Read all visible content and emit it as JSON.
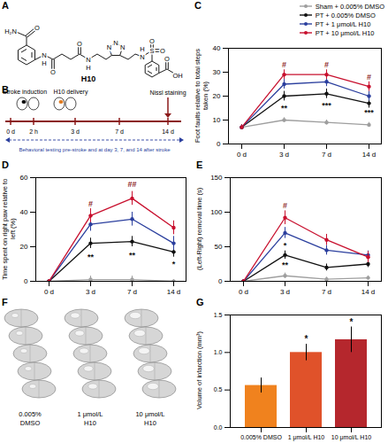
{
  "chart_data": [
    {
      "panel": "C",
      "type": "line",
      "y_label": "Foot faults relative to total steps taken (%)",
      "categories": [
        "0 d",
        "3 d",
        "7 d",
        "14 d"
      ],
      "ylim": [
        0,
        40
      ],
      "yticks": [
        0,
        10,
        20,
        30,
        40
      ],
      "legend": "top-right",
      "marker": "circle",
      "series": [
        {
          "name": "Sham + 0.005% DMSO",
          "color": "#9e9e9e",
          "values": [
            7,
            10,
            9,
            8
          ],
          "errors": [
            1,
            1,
            1,
            1
          ]
        },
        {
          "name": "PT + 0.005% DMSO",
          "color": "#111111",
          "values": [
            7,
            20,
            21,
            17
          ],
          "errors": [
            1,
            2,
            2,
            2
          ]
        },
        {
          "name": "PT + 1 μmol/L H10",
          "color": "#2b3f9e",
          "values": [
            7,
            25,
            26,
            20
          ],
          "errors": [
            1,
            2,
            2,
            2
          ]
        },
        {
          "name": "PT + 10 μmol/L H10",
          "color": "#c8102e",
          "values": [
            7,
            29,
            29,
            24
          ],
          "errors": [
            1,
            2,
            2,
            2
          ]
        }
      ],
      "annotations": [
        {
          "x": "3 d",
          "y": 33,
          "text": "#",
          "color": "#8b1a1a"
        },
        {
          "x": "7 d",
          "y": 33,
          "text": "#",
          "color": "#8b1a1a"
        },
        {
          "x": "14 d",
          "y": 28,
          "text": "#",
          "color": "#8b1a1a"
        },
        {
          "x": "3 d",
          "y": 15,
          "text": "**",
          "color": "#111111"
        },
        {
          "x": "7 d",
          "y": 16,
          "text": "***",
          "color": "#111111"
        },
        {
          "x": "14 d",
          "y": 13,
          "text": "***",
          "color": "#111111"
        }
      ]
    },
    {
      "panel": "D",
      "type": "line",
      "y_label": "Time spent on right paw relative to left (%)",
      "categories": [
        "0 d",
        "3 d",
        "7 d",
        "14 d"
      ],
      "ylim": [
        0,
        60
      ],
      "yticks": [
        0,
        20,
        40,
        60
      ],
      "marker": "circle",
      "series": [
        {
          "color": "#9e9e9e",
          "values": [
            0,
            1,
            1,
            0
          ],
          "errors": [
            1,
            2,
            2,
            1
          ]
        },
        {
          "color": "#111111",
          "values": [
            0,
            22,
            23,
            17
          ],
          "errors": [
            1,
            3,
            3,
            3
          ]
        },
        {
          "color": "#2b3f9e",
          "values": [
            0,
            33,
            36,
            22
          ],
          "errors": [
            1,
            4,
            4,
            4
          ]
        },
        {
          "color": "#c8102e",
          "values": [
            0,
            38,
            48,
            31
          ],
          "errors": [
            1,
            4,
            4,
            4
          ]
        }
      ],
      "annotations": [
        {
          "x": "3 d",
          "y": 45,
          "text": "#",
          "color": "#8b1a1a"
        },
        {
          "x": "7 d",
          "y": 56,
          "text": "##",
          "color": "#8b1a1a"
        },
        {
          "x": "3 d",
          "y": 14,
          "text": "**",
          "color": "#111111"
        },
        {
          "x": "7 d",
          "y": 15,
          "text": "**",
          "color": "#111111"
        },
        {
          "x": "14 d",
          "y": 10,
          "text": "*",
          "color": "#111111"
        }
      ]
    },
    {
      "panel": "E",
      "type": "line",
      "y_label": "(Left-Right) removal time (s)",
      "categories": [
        "0 d",
        "3 d",
        "7 d",
        "14 d"
      ],
      "ylim": [
        0,
        150
      ],
      "yticks": [
        0,
        50,
        100,
        150
      ],
      "marker": "circle",
      "series": [
        {
          "color": "#9e9e9e",
          "values": [
            0,
            8,
            3,
            5
          ],
          "errors": [
            2,
            4,
            3,
            3
          ]
        },
        {
          "color": "#111111",
          "values": [
            0,
            38,
            20,
            25
          ],
          "errors": [
            2,
            6,
            5,
            5
          ]
        },
        {
          "color": "#2b3f9e",
          "values": [
            0,
            70,
            45,
            38
          ],
          "errors": [
            2,
            8,
            7,
            6
          ]
        },
        {
          "color": "#c8102e",
          "values": [
            0,
            92,
            60,
            35
          ],
          "errors": [
            2,
            10,
            8,
            8
          ]
        }
      ],
      "annotations": [
        {
          "x": "3 d",
          "y": 110,
          "text": "#",
          "color": "#8b1a1a"
        },
        {
          "x": "3 d",
          "y": 52,
          "text": "*",
          "color": "#111111"
        },
        {
          "x": "3 d",
          "y": 24,
          "text": "**",
          "color": "#111111"
        }
      ]
    },
    {
      "panel": "G",
      "type": "bar",
      "y_label": "Volume of infarction (mm³)",
      "categories": [
        "0.005% DMSO",
        "1 μmol/L H10",
        "10 μmol/L H10"
      ],
      "values": [
        0.56,
        1.0,
        1.17
      ],
      "errors": [
        0.1,
        0.11,
        0.17
      ],
      "colors": [
        "#f0821e",
        "#e0522a",
        "#b5272d"
      ],
      "ylim": [
        0,
        1.5
      ],
      "yticks": [
        {
          "value": 0,
          "label": "0.0"
        },
        0.5,
        {
          "value": 1,
          "label": "1.0"
        },
        1.5
      ],
      "annotations": [
        {
          "x": "1 μmol/L H10",
          "y": 1.18,
          "text": "*",
          "color": "#111111"
        },
        {
          "x": "10 μmol/L H10",
          "y": 1.4,
          "text": "*",
          "color": "#111111"
        }
      ]
    }
  ],
  "panels": {
    "A": {
      "label": "A",
      "structure": {
        "name": "H10",
        "atoms": [
          "H₂N",
          "O",
          "N",
          "H",
          "O",
          "O",
          "N",
          "H",
          "N",
          "N",
          "N",
          "N",
          "H",
          "S",
          "O",
          "O",
          "O",
          "OH"
        ]
      }
    },
    "B": {
      "label": "B",
      "steps": [
        "Stroke induction",
        "H10 delivery"
      ],
      "timepoints": [
        "0 d",
        "2 h",
        "3 d",
        "7 d",
        "14 d"
      ],
      "endpoint": "Nissl staining",
      "behavior": "Behavioral testing pre-stroke and at day 3, 7, and 14 after stroke"
    },
    "F": {
      "label": "F",
      "groups": [
        [
          "0.005%",
          "DMSO"
        ],
        [
          "1 μmol/L",
          "H10"
        ],
        [
          "10 μmol/L",
          "H10"
        ]
      ]
    }
  }
}
